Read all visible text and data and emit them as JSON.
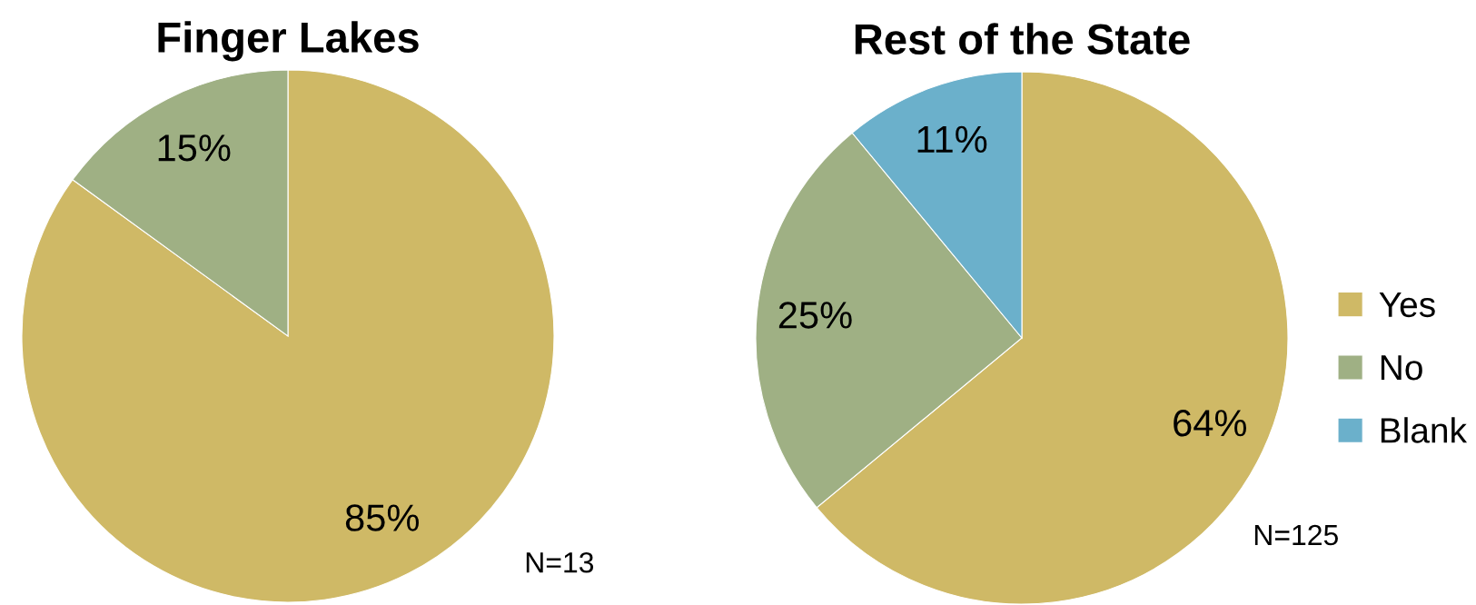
{
  "chart_data": [
    {
      "type": "pie",
      "title": "Finger Lakes",
      "categories": [
        null,
        null
      ],
      "values": [
        85,
        15
      ],
      "colors": [
        "#cfb966",
        "#9fb084"
      ],
      "value_labels": [
        "85%",
        "15%"
      ],
      "annotations": [
        "N=13"
      ]
    },
    {
      "type": "pie",
      "title": "Rest of the State",
      "categories": [
        "Yes",
        "No",
        "Blank"
      ],
      "values": [
        64,
        25,
        11
      ],
      "colors": [
        "#cfb966",
        "#9fb084",
        "#6bb0cb"
      ],
      "value_labels": [
        "64%",
        "25%",
        "11%"
      ],
      "annotations": [
        "N=125"
      ],
      "legend": "right"
    }
  ]
}
